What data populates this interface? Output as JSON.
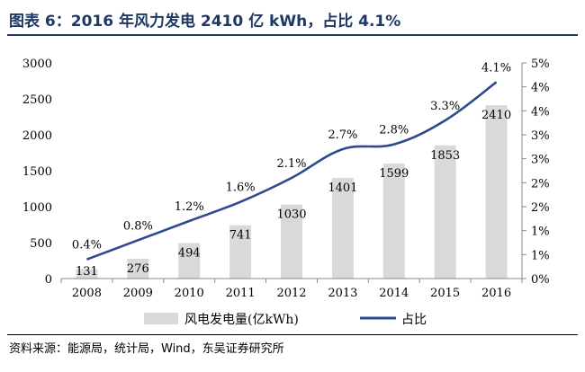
{
  "title": "图表 6：2016 年风力发电 2410 亿 kWh，占比 4.1%",
  "source": "资料来源：能源局，统计局，Wind，东吴证券研究所",
  "colors": {
    "bar": "#d9d9d9",
    "line": "#2e4a8e",
    "title": "#1f3864",
    "axis": "#8a8a8a"
  },
  "chart_data": {
    "type": "bar+line",
    "categories": [
      "2008",
      "2009",
      "2010",
      "2011",
      "2012",
      "2013",
      "2014",
      "2015",
      "2016"
    ],
    "series": [
      {
        "name": "风电发电量(亿kWh)",
        "type": "bar",
        "axis": "left",
        "values": [
          131,
          276,
          494,
          741,
          1030,
          1401,
          1599,
          1853,
          2410
        ],
        "labels": [
          "131",
          "276",
          "494",
          "741",
          "1030",
          "1401",
          "1599",
          "1853",
          "2410"
        ]
      },
      {
        "name": "占比",
        "type": "line",
        "axis": "right",
        "values": [
          0.4,
          0.8,
          1.2,
          1.6,
          2.1,
          2.7,
          2.8,
          3.3,
          4.1
        ],
        "labels": [
          "0.4%",
          "0.8%",
          "1.2%",
          "1.6%",
          "2.1%",
          "2.7%",
          "2.8%",
          "3.3%",
          "4.1%"
        ]
      }
    ],
    "y_left": {
      "min": 0,
      "max": 3000,
      "ticks": [
        "0",
        "500",
        "1000",
        "1500",
        "2000",
        "2500",
        "3000"
      ]
    },
    "y_right": {
      "min": 0,
      "max": 4.5,
      "ticks": [
        "0%",
        "1%",
        "1%",
        "2%",
        "2%",
        "3%",
        "3%",
        "4%",
        "4%",
        "5%"
      ]
    },
    "legend": "bottom",
    "grid": false
  }
}
